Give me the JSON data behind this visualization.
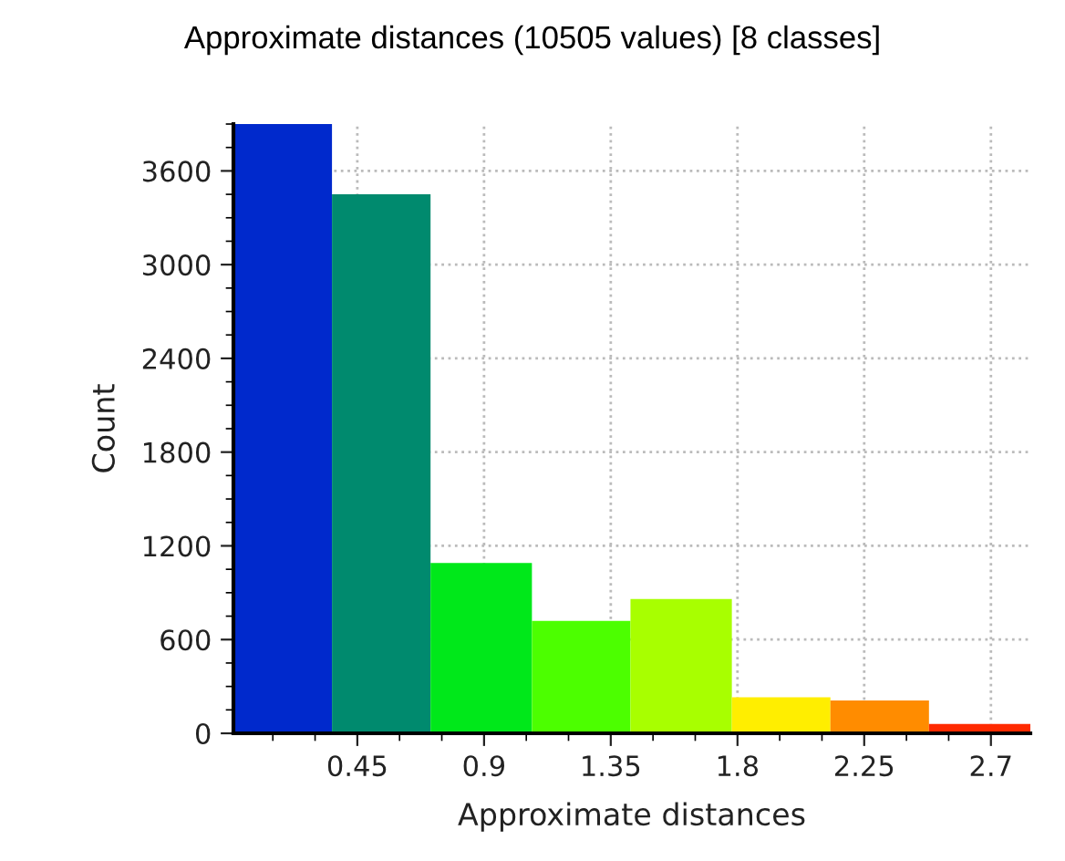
{
  "chart_data": {
    "type": "histogram",
    "title": "Approximate distances (10505 values) [8 classes]",
    "xlabel": "Approximate distances",
    "ylabel": "Count",
    "bins": [
      0.01,
      0.36,
      0.71,
      1.07,
      1.42,
      1.78,
      2.13,
      2.48,
      2.84
    ],
    "values": [
      3900,
      3450,
      1090,
      720,
      860,
      230,
      210,
      60
    ],
    "colors": [
      "#0029cc",
      "#008a6e",
      "#00e81a",
      "#4cff00",
      "#a8ff00",
      "#ffee00",
      "#ff8c00",
      "#ff2a00"
    ],
    "xlim": [
      0.01,
      2.84
    ],
    "xticks": [
      0.45,
      0.9,
      1.35,
      1.8,
      2.25,
      2.7
    ],
    "ylim": [
      0,
      3900
    ],
    "yticks": [
      0,
      600,
      1200,
      1800,
      2400,
      3000,
      3600
    ],
    "grid": true
  }
}
